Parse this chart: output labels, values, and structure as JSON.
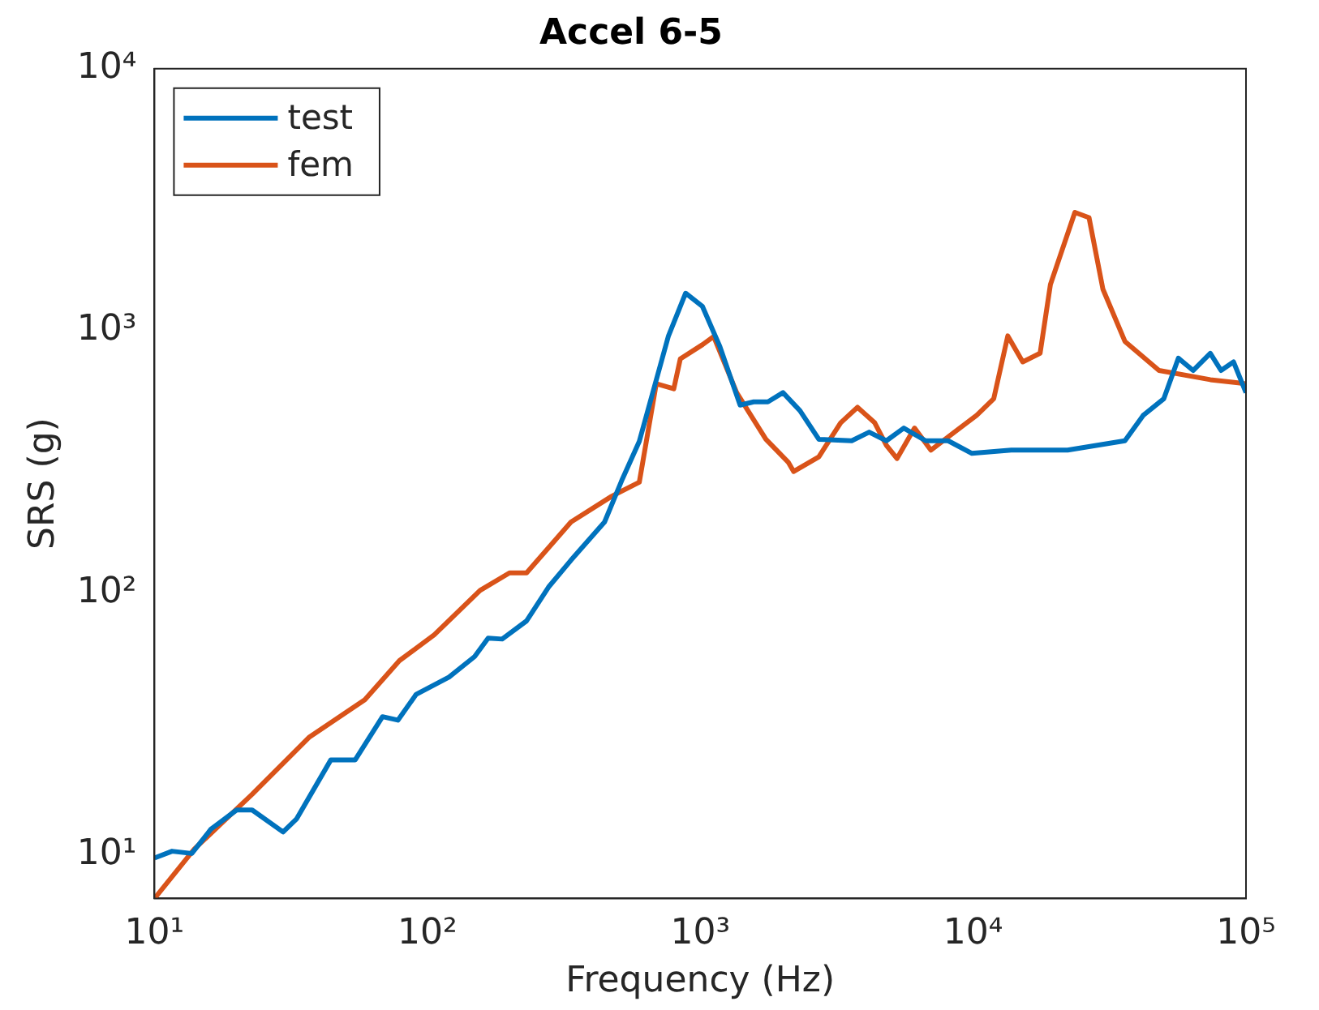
{
  "chart_data": {
    "type": "line",
    "title": "Accel 6-5",
    "xlabel": "Frequency (Hz)",
    "ylabel": "SRS (g)",
    "log": "xy",
    "grid": false,
    "legend": "top left",
    "line_style": "solid",
    "marker": "none",
    "xlim": [
      10,
      100000
    ],
    "xticks": [
      {
        "value": 10,
        "label": "10¹"
      },
      {
        "value": 100,
        "label": "10²"
      },
      {
        "value": 1000,
        "label": "10³"
      },
      {
        "value": 10000,
        "label": "10⁴"
      },
      {
        "value": 100000,
        "label": "10⁵"
      }
    ],
    "ylim": [
      6.8,
      10000
    ],
    "yticks": [
      {
        "value": 10,
        "label": "10¹"
      },
      {
        "value": 100,
        "label": "10²"
      },
      {
        "value": 1000,
        "label": "10³"
      },
      {
        "value": 10000,
        "label": "10⁴"
      }
    ],
    "series": [
      {
        "name": "test",
        "color": "#0072bd",
        "x": [
          10,
          11.6,
          13.7,
          16.1,
          20,
          22.8,
          29.6,
          33.2,
          44.3,
          54.4,
          68.5,
          78,
          91,
          120,
          149,
          167,
          188,
          231,
          278,
          336,
          446,
          518,
          598,
          765,
          884,
          1018,
          1180,
          1400,
          1570,
          1770,
          2010,
          2320,
          2720,
          3590,
          4160,
          4810,
          5570,
          6700,
          8100,
          9900,
          13800,
          22200,
          36000,
          42000,
          50000,
          56500,
          64000,
          74000,
          81000,
          90000,
          100000
        ],
        "values": [
          9.7,
          10.3,
          10.1,
          12.5,
          14.8,
          14.8,
          12.2,
          13.7,
          23,
          23,
          33.6,
          32.6,
          40.9,
          47.6,
          57,
          67,
          66.5,
          78,
          105,
          133,
          186,
          271,
          378,
          956,
          1390,
          1240,
          870,
          520,
          535,
          535,
          580,
          495,
          385,
          380,
          410,
          380,
          425,
          380,
          380,
          340,
          350,
          350,
          380,
          475,
          550,
          785,
          705,
          820,
          705,
          760,
          580
        ]
      },
      {
        "name": "fem",
        "color": "#d95319",
        "x": [
          10,
          14,
          22.8,
          36.8,
          59,
          79,
          106,
          156,
          200,
          231,
          336,
          473,
          598,
          690,
          800,
          845,
          1020,
          1120,
          1360,
          1740,
          2100,
          2200,
          2720,
          3270,
          3770,
          4360,
          4810,
          5260,
          6100,
          7000,
          8540,
          10300,
          11900,
          13400,
          15200,
          17600,
          19200,
          23600,
          26600,
          29900,
          36000,
          48000,
          74000,
          100000
        ],
        "values": [
          6.8,
          10.5,
          17,
          28,
          39,
          55,
          69,
          102,
          119,
          119,
          186,
          233,
          264,
          627,
          600,
          780,
          885,
          950,
          580,
          385,
          315,
          290,
          330,
          445,
          510,
          445,
          365,
          325,
          425,
          350,
          410,
          475,
          550,
          955,
          760,
          820,
          1500,
          2830,
          2700,
          1440,
          910,
          705,
          650,
          627
        ]
      }
    ]
  }
}
